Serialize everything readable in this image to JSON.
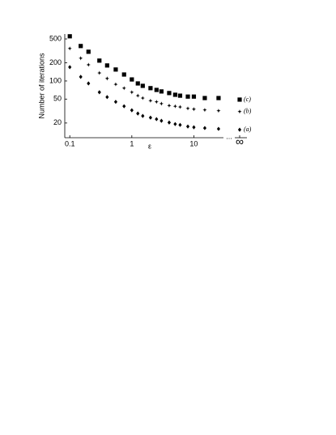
{
  "chart_data": {
    "type": "scatter",
    "y_label": "Number of iterations",
    "x_label": "ε",
    "x_scale": "log",
    "y_scale": "log",
    "x": [
      0.1,
      0.15,
      0.2,
      0.3,
      0.4,
      0.55,
      0.75,
      1,
      1.25,
      1.5,
      2,
      2.5,
      3,
      4,
      5,
      6,
      8,
      10,
      15,
      25
    ],
    "limit_label": "∞",
    "series": [
      {
        "name": "(c)",
        "marker": "square",
        "color": "#000000",
        "values": [
          553,
          381,
          306,
          218,
          181,
          155,
          128,
          106,
          91,
          83,
          76,
          71,
          67,
          63,
          59,
          57,
          55,
          55,
          52,
          52
        ],
        "limit_value": 49
      },
      {
        "name": "(b)",
        "marker": "star",
        "color": "#000000",
        "values": [
          347,
          239,
          186,
          136,
          110,
          88,
          76,
          65,
          57,
          52,
          47,
          45,
          42,
          39,
          38,
          37,
          35,
          34,
          33,
          32
        ],
        "limit_value": 31
      },
      {
        "name": "(a)",
        "marker": "diamond",
        "color": "#000000",
        "values": [
          170,
          117,
          91,
          65,
          54,
          45,
          38,
          32.6,
          28.8,
          26.2,
          24.6,
          23.2,
          21.8,
          20.4,
          19.2,
          18.6,
          17.5,
          17,
          16.5,
          16
        ],
        "limit_value": 15.5
      }
    ],
    "xlim": [
      0.083,
      30
    ],
    "ylim": [
      11.4,
      603
    ],
    "xticks": [
      0.1,
      1,
      10
    ],
    "yticks": [
      20,
      50,
      100,
      200,
      500
    ]
  }
}
